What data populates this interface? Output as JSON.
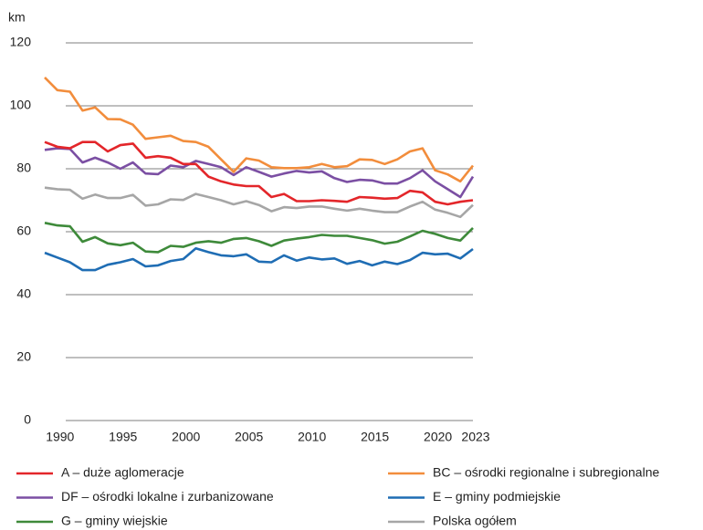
{
  "chart_data": {
    "type": "line",
    "y_label": "km",
    "x": [
      1989,
      1990,
      1991,
      1992,
      1993,
      1994,
      1995,
      1996,
      1997,
      1998,
      1999,
      2000,
      2001,
      2002,
      2003,
      2004,
      2005,
      2006,
      2007,
      2008,
      2009,
      2010,
      2011,
      2012,
      2013,
      2014,
      2015,
      2016,
      2017,
      2018,
      2019,
      2020,
      2021,
      2022,
      2023
    ],
    "xlim": [
      1989,
      2023
    ],
    "xticks": [
      1990,
      1995,
      2000,
      2005,
      2010,
      2015,
      2020,
      2023
    ],
    "ylim": [
      0,
      120
    ],
    "yticks": [
      0,
      20,
      40,
      60,
      80,
      100,
      120
    ],
    "grid": true,
    "series": [
      {
        "name": "A – duże aglomeracje",
        "color": "#e3262a",
        "values": [
          88.5,
          87,
          86.5,
          88.5,
          88.5,
          85.5,
          87.5,
          88,
          83.5,
          84,
          83.5,
          81.5,
          81.5,
          77.5,
          76,
          75,
          74.5,
          74.5,
          71,
          72,
          69.7,
          69.7,
          70,
          69.8,
          69.5,
          71,
          70.8,
          70.5,
          70.7,
          73,
          72.5,
          69.5,
          68.7,
          69.5,
          70
        ]
      },
      {
        "name": "BC – ośrodki regionalne i subregionalne",
        "color": "#f28d3c",
        "values": [
          109,
          105,
          104.5,
          98.5,
          99.5,
          95.8,
          95.7,
          94,
          89.5,
          90,
          90.5,
          88.8,
          88.5,
          87,
          83,
          79,
          83.3,
          82.6,
          80.5,
          80.2,
          80.2,
          80.5,
          81.5,
          80.5,
          80.8,
          83,
          82.8,
          81.5,
          83,
          85.5,
          86.5,
          79.5,
          78.2,
          76,
          81
        ]
      },
      {
        "name": "DF – ośrodki lokalne i zurbanizowane",
        "color": "#7b4fa3",
        "values": [
          86,
          86.5,
          86.3,
          82,
          83.5,
          82,
          80,
          82,
          78.5,
          78.3,
          81,
          80.5,
          82.5,
          81.5,
          80.5,
          78,
          80.5,
          79,
          77.5,
          78.5,
          79.3,
          78.8,
          79.2,
          77,
          75.8,
          76.5,
          76.3,
          75.3,
          75.3,
          77,
          79.5,
          76,
          73.5,
          71,
          77.5
        ]
      },
      {
        "name": "E – gminy podmiejskie",
        "color": "#1f6db4",
        "values": [
          53.3,
          51.8,
          50.3,
          47.8,
          47.8,
          49.5,
          50.3,
          51.3,
          49,
          49.3,
          50.7,
          51.3,
          54.7,
          53.5,
          52.5,
          52.2,
          52.8,
          50.5,
          50.3,
          52.5,
          50.8,
          51.8,
          51.2,
          51.5,
          49.8,
          50.7,
          49.3,
          50.5,
          49.7,
          51,
          53.3,
          52.8,
          53,
          51.5,
          54.5
        ]
      },
      {
        "name": "G – gminy wiejskie",
        "color": "#3e8a3a",
        "values": [
          62.8,
          62,
          61.7,
          56.8,
          58.3,
          56.3,
          55.7,
          56.5,
          53.7,
          53.5,
          55.5,
          55.2,
          56.5,
          57,
          56.5,
          57.7,
          58,
          57,
          55.5,
          57.2,
          57.8,
          58.3,
          59,
          58.7,
          58.7,
          58,
          57.3,
          56.2,
          56.8,
          58.5,
          60.3,
          59.3,
          58,
          57.2,
          61.2
        ]
      },
      {
        "name": "Polska ogółem",
        "color": "#a6a6a6",
        "values": [
          74,
          73.5,
          73.3,
          70.5,
          71.8,
          70.7,
          70.7,
          71.7,
          68.3,
          68.7,
          70.3,
          70.1,
          72,
          71,
          70,
          68.7,
          69.7,
          68.5,
          66.5,
          67.8,
          67.5,
          68,
          68,
          67.3,
          66.7,
          67.3,
          66.7,
          66.2,
          66.2,
          68,
          69.5,
          67,
          66,
          64.7,
          68.5
        ]
      }
    ]
  }
}
